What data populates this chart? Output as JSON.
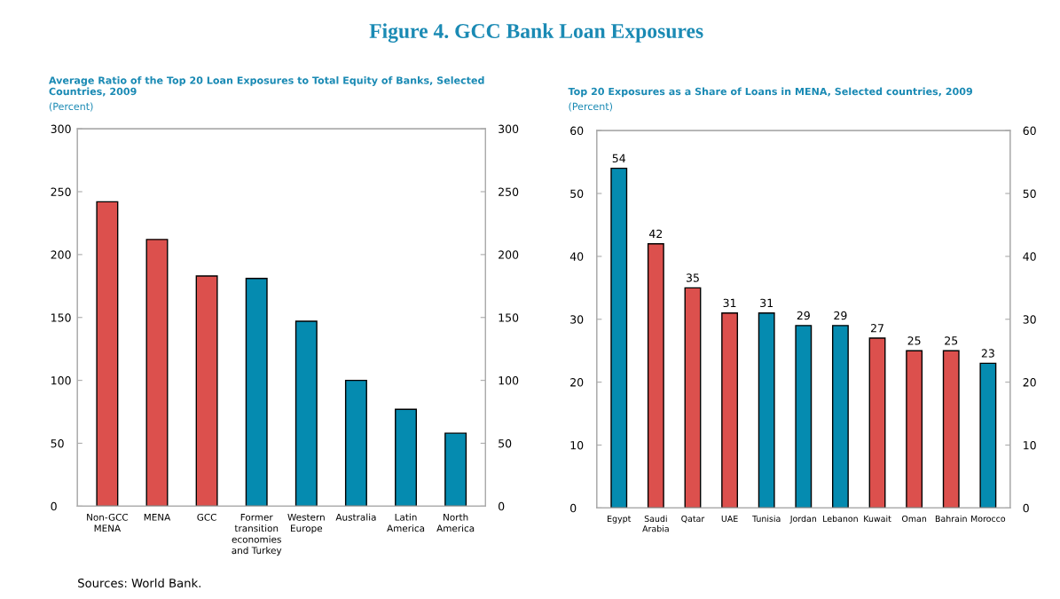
{
  "chart_data": [
    {
      "type": "bar",
      "title": "Average Ratio of the Top 20 Loan Exposures to Total Equity of Banks, Selected Countries, 2009",
      "subtitle": "(Percent)",
      "categories": [
        "Non-GCC\nMENA",
        "MENA",
        "GCC",
        "Former\ntransition\neconomies\nand Turkey",
        "Western\nEurope",
        "Australia",
        "Latin\nAmerica",
        "North\nAmerica"
      ],
      "values": [
        242,
        212,
        183,
        181,
        147,
        100,
        77,
        58
      ],
      "colors": [
        "#dc504d",
        "#dc504d",
        "#dc504d",
        "#058bb0",
        "#058bb0",
        "#058bb0",
        "#058bb0",
        "#058bb0"
      ],
      "ylim": [
        0,
        300
      ],
      "yticks": [
        0,
        50,
        100,
        150,
        200,
        250,
        300
      ],
      "y2lim": [
        0,
        300
      ],
      "y2ticks": [
        0,
        50,
        100,
        150,
        200,
        250,
        300
      ],
      "grid": false,
      "legend": false,
      "annotations": [
        "Figure 4. GCC Bank Loan Exposures",
        "Sources: World Bank."
      ]
    },
    {
      "type": "bar",
      "title": "Top 20 Exposures as a Share of Loans in MENA, Selected countries, 2009",
      "subtitle": "(Percent)",
      "categories": [
        "Egypt",
        "Saudi\nArabia",
        "Qatar",
        "UAE",
        "Tunisia",
        "Jordan",
        "Lebanon",
        "Kuwait",
        "Oman",
        "Bahrain",
        "Morocco"
      ],
      "values": [
        54,
        42,
        35,
        31,
        31,
        29,
        29,
        27,
        25,
        25,
        23
      ],
      "colors": [
        "#058bb0",
        "#dc504d",
        "#dc504d",
        "#dc504d",
        "#058bb0",
        "#058bb0",
        "#058bb0",
        "#dc504d",
        "#dc504d",
        "#dc504d",
        "#058bb0"
      ],
      "ylim": [
        0,
        60
      ],
      "yticks": [
        0,
        10,
        20,
        30,
        40,
        50,
        60
      ],
      "y2lim": [
        0,
        60
      ],
      "y2ticks": [
        0,
        10,
        20,
        30,
        40,
        50,
        60
      ],
      "grid": false,
      "legend": false,
      "data_labels": true
    }
  ]
}
